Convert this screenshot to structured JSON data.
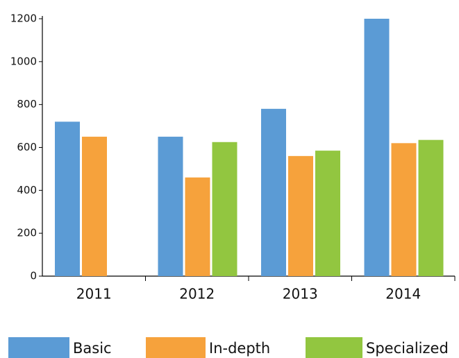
{
  "chart_data": {
    "type": "bar",
    "categories": [
      "2011",
      "2012",
      "2013",
      "2014"
    ],
    "series": [
      {
        "name": "Basic",
        "color": "#5b9bd5",
        "values": [
          720,
          650,
          780,
          1200
        ]
      },
      {
        "name": "In-depth",
        "color": "#f6a23c",
        "values": [
          650,
          460,
          560,
          620
        ]
      },
      {
        "name": "Specialized",
        "color": "#92c640",
        "values": [
          null,
          625,
          585,
          635
        ]
      }
    ],
    "ylim": [
      0,
      1200
    ],
    "yticks": [
      0,
      200,
      400,
      600,
      800,
      1000,
      1200
    ],
    "legend": "bottom",
    "grid": false
  }
}
